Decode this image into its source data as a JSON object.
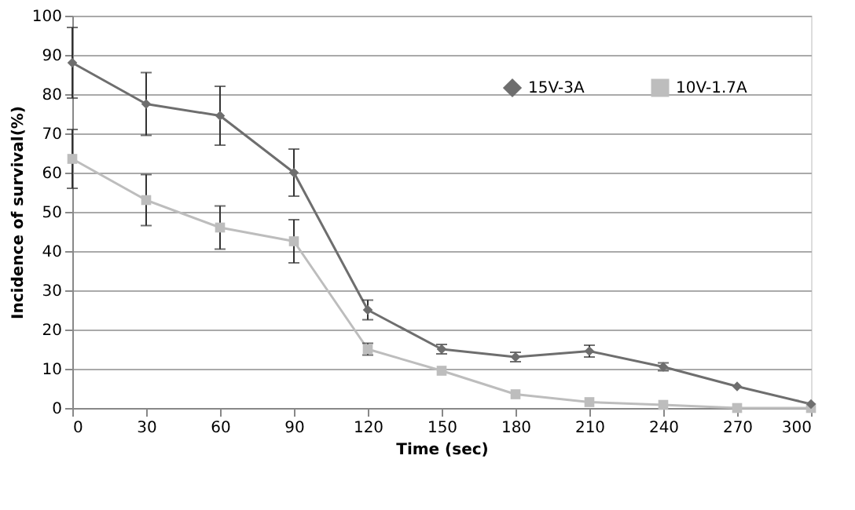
{
  "chart_data": {
    "type": "line",
    "xlabel": "Time (sec)",
    "ylabel": "Incidence of survival(%)",
    "x": [
      0,
      30,
      60,
      90,
      120,
      150,
      180,
      210,
      240,
      270,
      300
    ],
    "series": [
      {
        "name": "15V-3A",
        "color": "#6e6e6e",
        "marker": "diamond",
        "values": [
          88,
          77.5,
          74.5,
          60,
          25,
          15,
          13,
          14.5,
          10.5,
          5.5,
          1
        ],
        "errors": [
          9,
          8,
          7.5,
          6,
          2.5,
          1.2,
          1.2,
          1.5,
          1,
          null,
          null
        ]
      },
      {
        "name": "10V-1.7A",
        "color": "#bdbdbd",
        "marker": "square",
        "values": [
          63.5,
          53,
          46,
          42.5,
          15,
          9.5,
          3.5,
          1.5,
          0.8,
          0,
          0
        ],
        "errors": [
          7.5,
          6.5,
          5.5,
          5.5,
          1.5,
          null,
          null,
          null,
          null,
          null,
          null
        ]
      }
    ],
    "xlim": [
      0,
      300
    ],
    "xticks": [
      0,
      30,
      60,
      90,
      120,
      150,
      180,
      210,
      240,
      270,
      300
    ],
    "ylim": [
      0,
      100
    ],
    "yticks": [
      0,
      10,
      20,
      30,
      40,
      50,
      60,
      70,
      80,
      90,
      100
    ],
    "grid": "y",
    "legend": "top right",
    "line_style": "solid"
  }
}
